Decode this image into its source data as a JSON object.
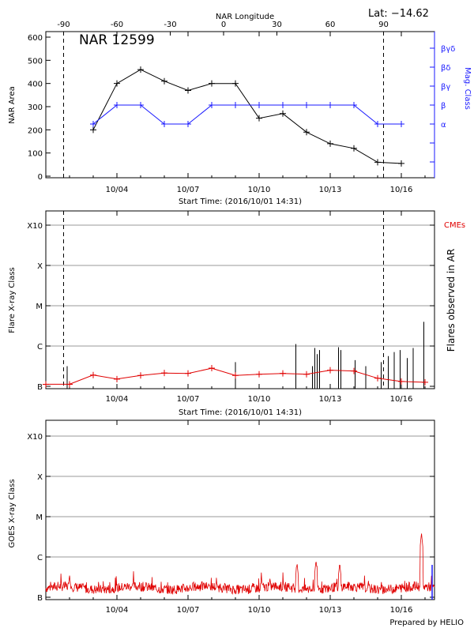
{
  "header": {
    "latitude_label": "Lat: −14.62",
    "top_axis_label": "NAR Longitude",
    "credit": "Prepared by HELIO"
  },
  "x_axis": {
    "start_time_label": "Start Time: (2016/10/01 14:31)",
    "tick_labels": [
      "10/04",
      "10/07",
      "10/10",
      "10/13",
      "10/16"
    ],
    "tick_days": [
      3,
      6,
      9,
      12,
      15
    ],
    "range_days": [
      0,
      16.4
    ],
    "limb_days": [
      0.75,
      14.25
    ]
  },
  "chart_data": [
    {
      "type": "line",
      "title": "NAR 12599",
      "ylabel": "NAR Area",
      "y2label": "Mag. Class",
      "ylim": [
        0,
        600
      ],
      "y_ticks": [
        0,
        100,
        200,
        300,
        400,
        500,
        600
      ],
      "top_ticks": [
        -90,
        -60,
        -30,
        0,
        30,
        60,
        90
      ],
      "mag_class_labels": [
        "α",
        "β",
        "βγ",
        "βδ",
        "βγδ"
      ],
      "series": [
        {
          "x_days": [
            2,
            3,
            4,
            5,
            6,
            7,
            8,
            9,
            10,
            11,
            12,
            13,
            14,
            15
          ],
          "values": [
            200,
            400,
            460,
            410,
            370,
            400,
            400,
            250,
            270,
            190,
            140,
            120,
            60,
            55
          ]
        },
        {
          "x_days": [
            2,
            3,
            4,
            5,
            6,
            7,
            8,
            9,
            10,
            11,
            12,
            13,
            14,
            15
          ],
          "mag_levels": [
            0,
            1,
            1,
            0,
            0,
            1,
            1,
            1,
            1,
            1,
            1,
            1,
            0,
            0
          ]
        }
      ]
    },
    {
      "type": "line",
      "ylabel": "Flare X-ray Class",
      "y2label": "Flares observed in AR",
      "cme_label": "CMEs",
      "class_labels": [
        "B",
        "C",
        "M",
        "X",
        "X10"
      ],
      "series": [
        {
          "x_days": [
            0,
            1,
            2,
            3,
            4,
            5,
            6,
            7,
            8,
            9,
            10,
            11,
            12,
            13,
            14,
            15,
            16
          ],
          "class_levels": [
            0.05,
            0.05,
            0.28,
            0.18,
            0.27,
            0.33,
            0.32,
            0.45,
            0.27,
            0.3,
            0.32,
            0.3,
            0.4,
            0.38,
            0.2,
            0.12,
            0.1
          ]
        }
      ],
      "flare_events": [
        {
          "x_day": 0.9,
          "level": 0.5
        },
        {
          "x_day": 8.0,
          "level": 0.6
        },
        {
          "x_day": 10.55,
          "level": 1.05
        },
        {
          "x_day": 11.25,
          "level": 0.5
        },
        {
          "x_day": 11.35,
          "level": 0.95
        },
        {
          "x_day": 11.45,
          "level": 0.8
        },
        {
          "x_day": 11.55,
          "level": 0.9
        },
        {
          "x_day": 12.35,
          "level": 0.97
        },
        {
          "x_day": 12.45,
          "level": 0.9
        },
        {
          "x_day": 13.05,
          "level": 0.65
        },
        {
          "x_day": 13.5,
          "level": 0.5
        },
        {
          "x_day": 14.15,
          "level": 0.6
        },
        {
          "x_day": 14.45,
          "level": 0.75
        },
        {
          "x_day": 14.7,
          "level": 0.85
        },
        {
          "x_day": 14.95,
          "level": 0.9
        },
        {
          "x_day": 15.25,
          "level": 0.7
        },
        {
          "x_day": 15.5,
          "level": 0.95
        },
        {
          "x_day": 15.95,
          "level": 1.6
        }
      ]
    },
    {
      "type": "line",
      "ylabel": "GOES X-ray Class",
      "class_labels": [
        "B",
        "C",
        "M",
        "X",
        "X10"
      ],
      "baseline_level": 0.23,
      "noise_amplitude": 0.12,
      "peaks": [
        {
          "x_day": 1.0,
          "level": 0.55
        },
        {
          "x_day": 3.7,
          "level": 0.45
        },
        {
          "x_day": 9.1,
          "level": 0.5
        },
        {
          "x_day": 10.6,
          "level": 0.85
        },
        {
          "x_day": 11.4,
          "level": 0.92
        },
        {
          "x_day": 12.4,
          "level": 0.85
        },
        {
          "x_day": 15.85,
          "level": 1.6
        }
      ]
    }
  ]
}
